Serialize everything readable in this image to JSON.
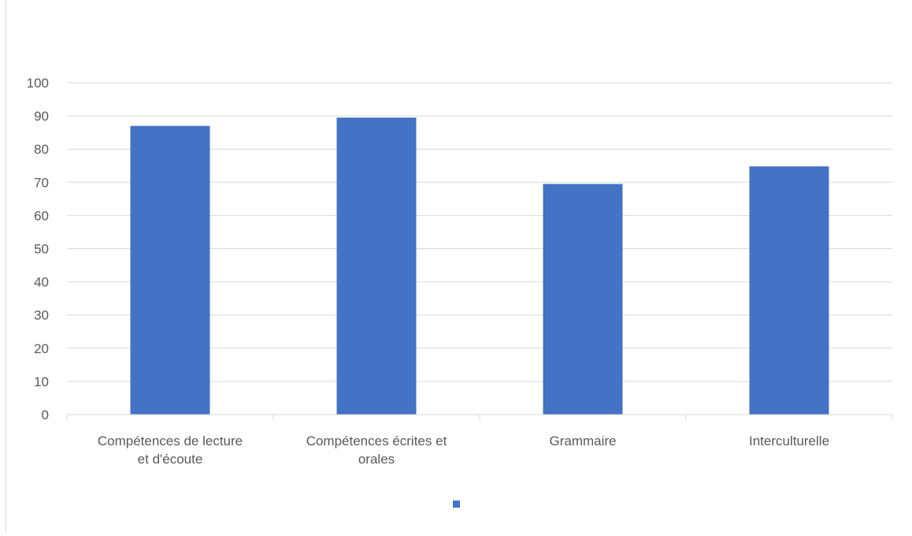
{
  "chart_data": {
    "type": "bar",
    "categories": [
      [
        "Compétences de lecture",
        "et d'écoute"
      ],
      [
        "Compétences écrites et",
        "orales"
      ],
      [
        "Grammaire"
      ],
      [
        "Interculturelle"
      ]
    ],
    "series": [
      {
        "values": [
          87,
          89.5,
          69.5,
          74.8
        ],
        "color": "#4472c4"
      }
    ],
    "ylim": [
      0,
      100
    ],
    "yticks": [
      0,
      10,
      20,
      30,
      40,
      50,
      60,
      70,
      80,
      90,
      100
    ],
    "grid": true,
    "legend_position": "bottom",
    "colors": {
      "gridline": "#d9d9d9",
      "axis_text": "#595959"
    }
  }
}
